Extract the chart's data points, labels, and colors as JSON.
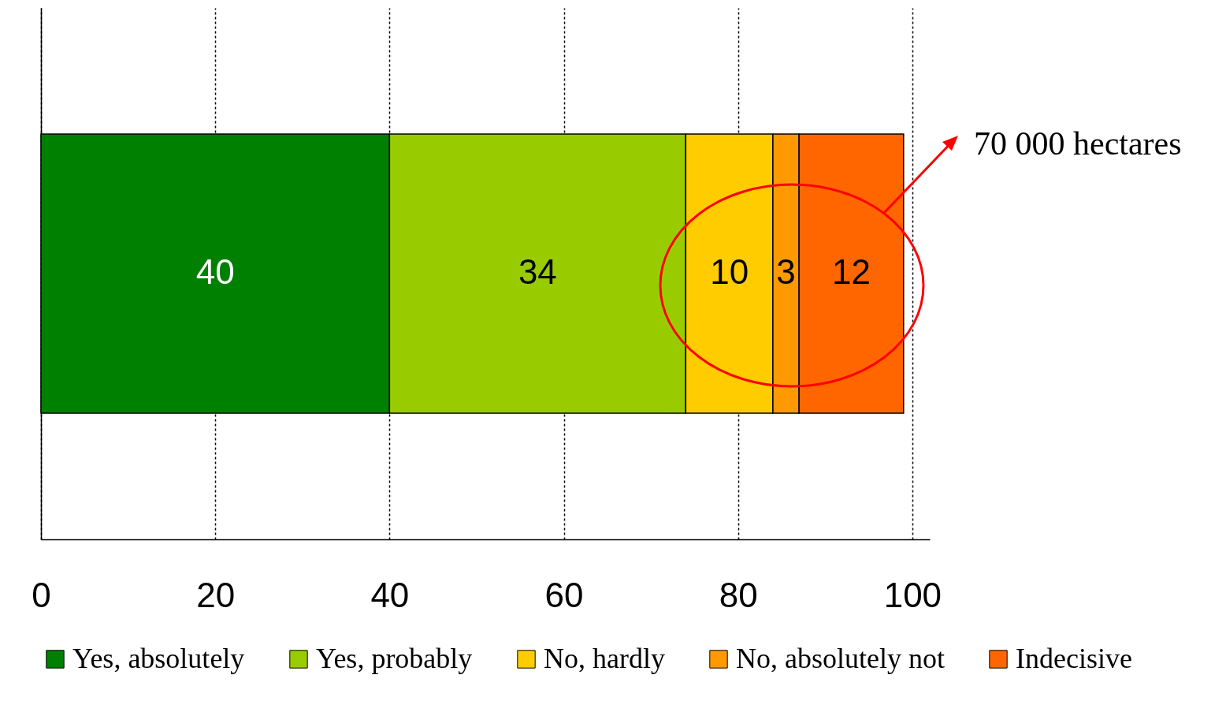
{
  "chart_data": {
    "type": "bar",
    "orientation": "horizontal",
    "stacked": true,
    "categories": [
      null
    ],
    "series": [
      {
        "name": "Yes, absolutely",
        "color": "#008000",
        "values": [
          40
        ]
      },
      {
        "name": "Yes, probably",
        "color": "#99cc00",
        "values": [
          34
        ]
      },
      {
        "name": "No, hardly",
        "color": "#ffcc00",
        "values": [
          10
        ]
      },
      {
        "name": "No, absolutely not",
        "color": "#ff9900",
        "values": [
          3
        ]
      },
      {
        "name": "Indecisive",
        "color": "#ff6600",
        "values": [
          12
        ]
      }
    ],
    "xlim": [
      0,
      102
    ],
    "xticks": [
      0,
      20,
      40,
      60,
      80,
      100
    ],
    "grid": "x",
    "line_style": "dotted",
    "legend": "bottom",
    "data_labels": true,
    "annotations": [
      "70 000 hectares"
    ]
  }
}
